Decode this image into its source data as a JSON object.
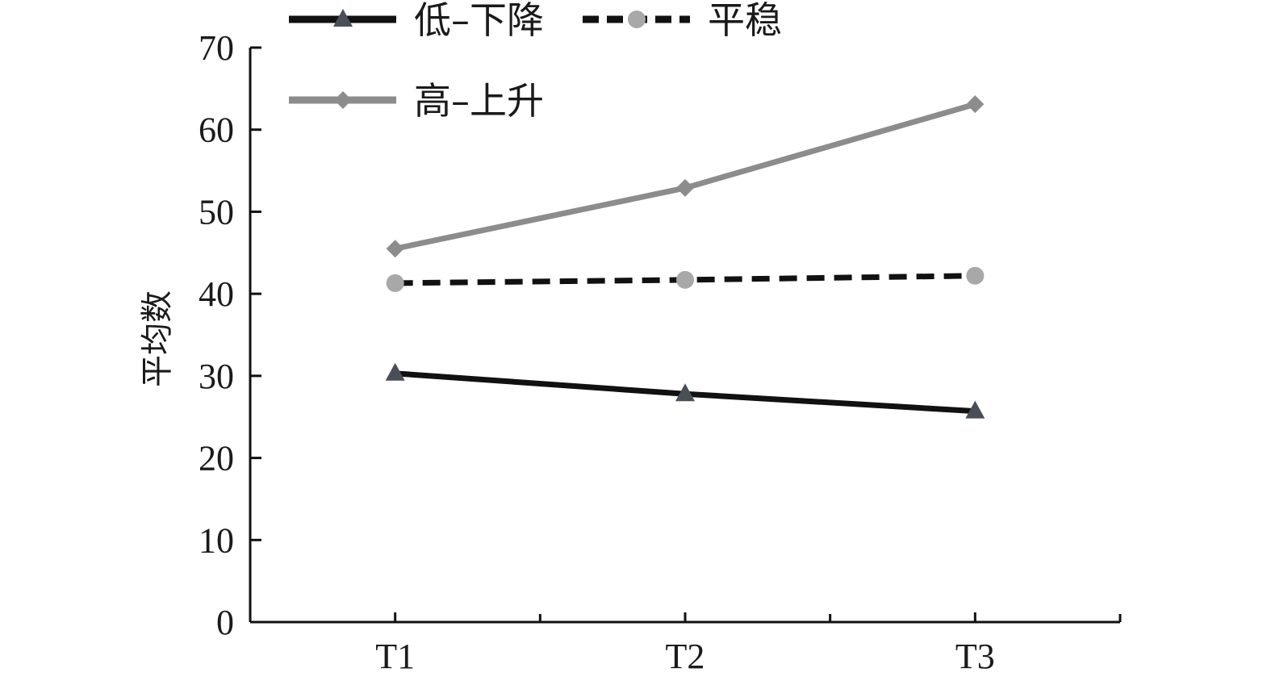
{
  "chart_data": {
    "type": "line",
    "categories": [
      "T1",
      "T2",
      "T3"
    ],
    "ylabel": "平均数",
    "xlabel": "",
    "ylim": [
      0,
      70
    ],
    "yticks": [
      0,
      10,
      20,
      30,
      40,
      50,
      60,
      70
    ],
    "grid": false,
    "legend": "top",
    "series": [
      {
        "name": "低–下降",
        "values": [
          30.3,
          27.8,
          25.7
        ],
        "color": "#111111",
        "dash": "solid",
        "marker": "triangle",
        "marker_color": "#4a4f57"
      },
      {
        "name": "平稳",
        "values": [
          41.3,
          41.7,
          42.2
        ],
        "color": "#111111",
        "dash": "dashed",
        "marker": "circle",
        "marker_color": "#a8a8a8"
      },
      {
        "name": "高–上升",
        "values": [
          45.5,
          52.9,
          63.1
        ],
        "color": "#8c8c8c",
        "dash": "solid",
        "marker": "diamond",
        "marker_color": "#8c8c8c"
      }
    ]
  }
}
